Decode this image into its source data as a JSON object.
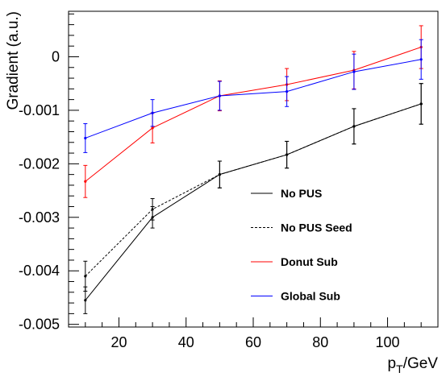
{
  "chart_data": {
    "type": "line",
    "title": "",
    "xlabel_main": "p",
    "xlabel_sub": "T",
    "xlabel_unit": "/GeV",
    "ylabel": "Gradient (a.u.)",
    "xlim": [
      5,
      115
    ],
    "ylim": [
      -0.00505,
      0.00085
    ],
    "x_ticks": [
      20,
      40,
      60,
      80,
      100
    ],
    "y_ticks": [
      0,
      -0.001,
      -0.002,
      -0.003,
      -0.004,
      -0.005
    ],
    "x_tick_labels": [
      "20",
      "40",
      "60",
      "80",
      "100"
    ],
    "y_tick_labels": [
      "0",
      "-0.001",
      "-0.002",
      "-0.003",
      "-0.004",
      "-0.005"
    ],
    "grid": false,
    "legend_position": "center-right",
    "x": [
      10,
      30,
      50,
      70,
      90,
      110
    ],
    "series": [
      {
        "name": "No PUS",
        "color": "#000000",
        "dash": "",
        "values": [
          -0.00455,
          -0.003,
          -0.0022,
          -0.00183,
          -0.0013,
          -0.00088
        ],
        "errors": [
          0.00025,
          0.0002,
          0.00025,
          0.00025,
          0.00033,
          0.00038
        ]
      },
      {
        "name": "No PUS Seed",
        "color": "#000000",
        "dash": "3,2",
        "values": [
          -0.0041,
          -0.00285,
          -0.0022,
          -0.00183,
          -0.0013,
          -0.00088
        ],
        "errors": [
          0.00028,
          0.0002,
          0.00025,
          0.00025,
          0.00033,
          0.00038
        ]
      },
      {
        "name": "Donut Sub",
        "color": "#ff0000",
        "dash": "",
        "values": [
          -0.00233,
          -0.00133,
          -0.00073,
          -0.00052,
          -0.00025,
          0.00018
        ],
        "errors": [
          0.0003,
          0.00028,
          0.00028,
          0.0003,
          0.00035,
          0.0004
        ]
      },
      {
        "name": "Global Sub",
        "color": "#0000ff",
        "dash": "",
        "values": [
          -0.00152,
          -0.00105,
          -0.00073,
          -0.00065,
          -0.00028,
          -5e-05
        ],
        "errors": [
          0.00027,
          0.00025,
          0.00027,
          0.00028,
          0.00033,
          0.00037
        ]
      }
    ]
  }
}
